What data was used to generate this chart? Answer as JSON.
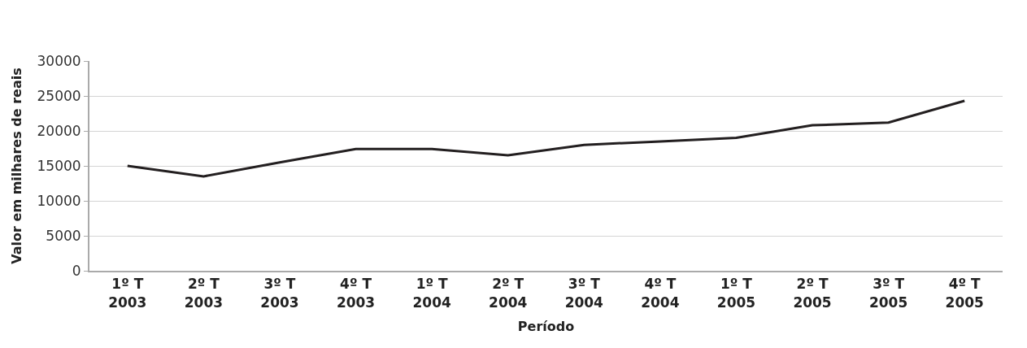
{
  "chart_data": {
    "type": "line",
    "xlabel": "Período",
    "ylabel": "Valor em milhares de reais",
    "categories": [
      "1º T\n2003",
      "2º T\n2003",
      "3º T\n2003",
      "4º T\n2003",
      "1º T\n2004",
      "2º T\n2004",
      "3º T\n2004",
      "4º T\n2004",
      "1º T\n2005",
      "2º T\n2005",
      "3º T\n2005",
      "4º T\n2005"
    ],
    "series": [
      {
        "color": "#231f20",
        "values": [
          15000,
          13500,
          15500,
          17400,
          17400,
          16500,
          18000,
          18500,
          19000,
          20800,
          21200,
          24300
        ]
      }
    ],
    "ylim": [
      0,
      30000
    ],
    "yticks": [
      0,
      5000,
      10000,
      15000,
      20000,
      25000,
      30000
    ],
    "grid": "y",
    "marker": "none",
    "line_style": "solid"
  }
}
